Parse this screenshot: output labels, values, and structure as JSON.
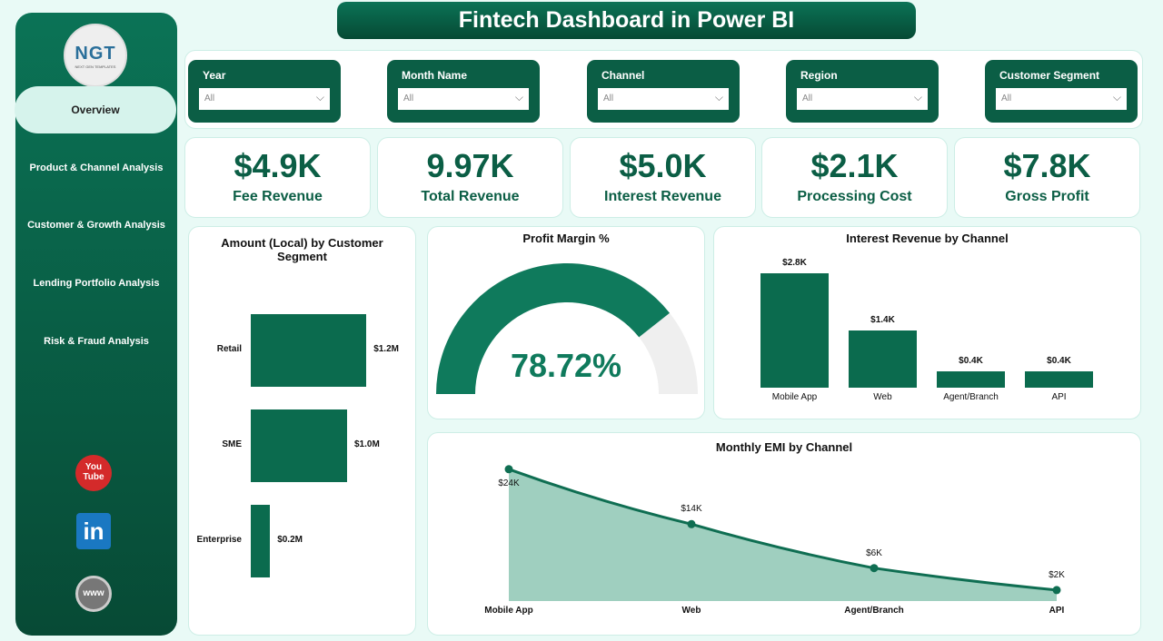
{
  "header": {
    "title": "Fintech Dashboard in Power BI"
  },
  "sidebar": {
    "logo_text": "NGT",
    "logo_sub": "NEXT GEN TEMPLATES",
    "items": [
      {
        "label": "Overview",
        "active": true
      },
      {
        "label": "Product & Channel Analysis"
      },
      {
        "label": "Customer & Growth Analysis"
      },
      {
        "label": "Lending Portfolio Analysis"
      },
      {
        "label": "Risk & Fraud Analysis"
      }
    ],
    "social": [
      "youtube-icon",
      "linkedin-icon",
      "website-icon"
    ],
    "youtube_text": "You Tube",
    "linkedin_text": "in",
    "web_text": "www"
  },
  "filters": [
    {
      "label": "Year",
      "value": "All"
    },
    {
      "label": "Month Name",
      "value": "All"
    },
    {
      "label": "Channel",
      "value": "All"
    },
    {
      "label": "Region",
      "value": "All"
    },
    {
      "label": "Customer Segment",
      "value": "All"
    }
  ],
  "kpis": [
    {
      "value": "$4.9K",
      "label": "Fee Revenue"
    },
    {
      "value": "9.97K",
      "label": "Total Revenue"
    },
    {
      "value": "$5.0K",
      "label": "Interest Revenue"
    },
    {
      "value": "$2.1K",
      "label": "Processing Cost"
    },
    {
      "value": "$7.8K",
      "label": "Gross Profit"
    }
  ],
  "colors": {
    "primary": "#0b5e45",
    "bar": "#0b6b4e",
    "gauge": "#0f7a5c",
    "gauge_bg": "#efefef",
    "area": "#9fcfbf"
  },
  "chart_data": [
    {
      "type": "bar",
      "orientation": "horizontal",
      "title": "Amount (Local) by Customer Segment",
      "categories": [
        "Retail",
        "SME",
        "Enterprise"
      ],
      "values": [
        1.2,
        1.0,
        0.2
      ],
      "unit": "M",
      "labels": [
        "$1.2M",
        "$1.0M",
        "$0.2M"
      ]
    },
    {
      "type": "gauge",
      "title": "Profit Margin %",
      "value": 78.72,
      "label": "78.72%",
      "range": [
        0,
        100
      ]
    },
    {
      "type": "bar",
      "title": "Interest Revenue by Channel",
      "categories": [
        "Mobile App",
        "Web",
        "Agent/Branch",
        "API"
      ],
      "values": [
        2.8,
        1.4,
        0.4,
        0.4
      ],
      "unit": "K",
      "labels": [
        "$2.8K",
        "$1.4K",
        "$0.4K",
        "$0.4K"
      ]
    },
    {
      "type": "area",
      "title": "Monthly EMI by Channel",
      "categories": [
        "Mobile App",
        "Web",
        "Agent/Branch",
        "API"
      ],
      "values": [
        24,
        14,
        6,
        2
      ],
      "unit": "K",
      "labels": [
        "$24K",
        "$14K",
        "$6K",
        "$2K"
      ]
    }
  ]
}
